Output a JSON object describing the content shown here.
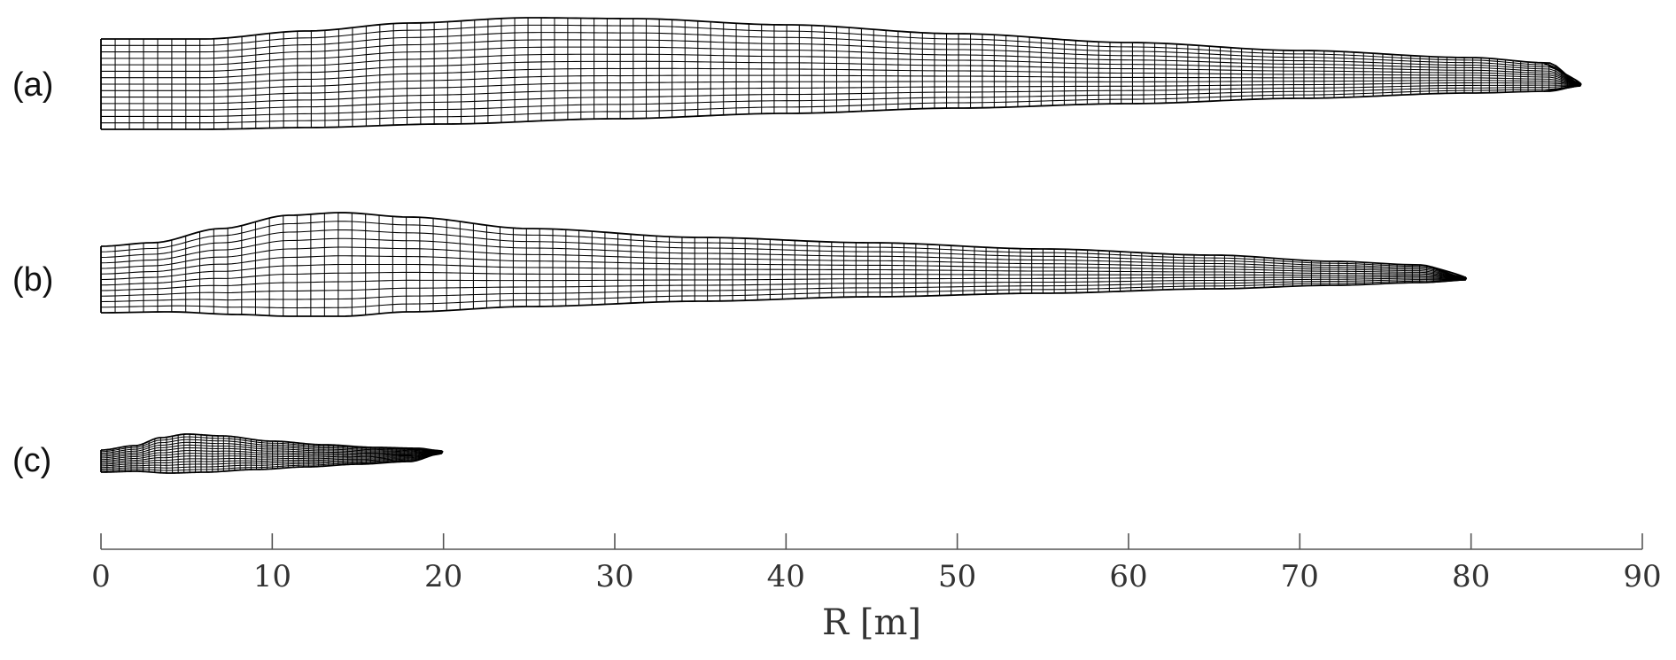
{
  "figure": {
    "panels": [
      {
        "id": "a",
        "label": "(a)",
        "radius_m": 86.4
      },
      {
        "id": "b",
        "label": "(b)",
        "radius_m": 79.7
      },
      {
        "id": "c",
        "label": "(c)",
        "radius_m": 19.9
      }
    ],
    "x_axis": {
      "label": "R [m]",
      "range_m": [
        0,
        90
      ],
      "ticks": [
        "0",
        "10",
        "20",
        "30",
        "40",
        "50",
        "60",
        "70",
        "80",
        "90"
      ]
    },
    "colors": {
      "mesh": "#000000",
      "axis": "#555555",
      "background": "#ffffff"
    }
  }
}
